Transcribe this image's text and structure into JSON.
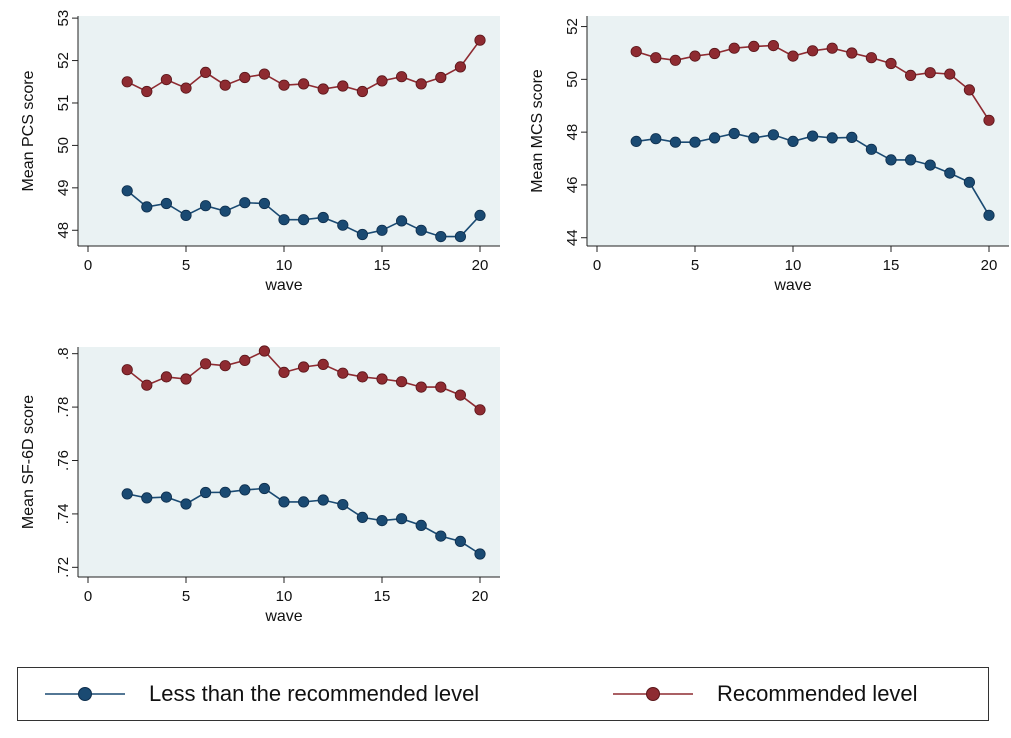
{
  "colors": {
    "less": "#1a4a72",
    "recommended": "#8e2b31",
    "panel_bg": "#eaf2f3",
    "axis": "#222222"
  },
  "legend": {
    "position": "bottom",
    "items": [
      {
        "label": "Less than the recommended level",
        "color": "#1a4a72"
      },
      {
        "label": "Recommended level",
        "color": "#8e2b31"
      }
    ]
  },
  "chart_data": [
    {
      "type": "line",
      "xlabel": "wave",
      "ylabel": "Mean PCS score",
      "xlim": [
        0,
        20
      ],
      "ylim": [
        47.7,
        53.05
      ],
      "xticks": [
        0,
        5,
        10,
        15,
        20
      ],
      "yticks": [
        48,
        49,
        50,
        51,
        52,
        53
      ],
      "ytick_labels": [
        "48",
        "49",
        "50",
        "51",
        "52",
        "53"
      ],
      "grid": false,
      "x": [
        2,
        3,
        4,
        5,
        6,
        7,
        8,
        9,
        10,
        11,
        12,
        13,
        14,
        15,
        16,
        17,
        18,
        19,
        20
      ],
      "series": [
        {
          "name": "Less than the recommended level",
          "values": [
            48.93,
            48.55,
            48.63,
            48.35,
            48.58,
            48.45,
            48.65,
            48.63,
            48.25,
            48.25,
            48.3,
            48.12,
            47.9,
            48.0,
            48.22,
            48.0,
            47.85,
            47.85,
            48.35
          ]
        },
        {
          "name": "Recommended level",
          "values": [
            51.5,
            51.27,
            51.55,
            51.35,
            51.72,
            51.42,
            51.6,
            51.68,
            51.42,
            51.45,
            51.33,
            51.4,
            51.27,
            51.52,
            51.62,
            51.45,
            51.6,
            51.85,
            52.48
          ]
        }
      ]
    },
    {
      "type": "line",
      "xlabel": "wave",
      "ylabel": "Mean MCS score",
      "xlim": [
        0,
        20
      ],
      "ylim": [
        43.8,
        52.4
      ],
      "xticks": [
        0,
        5,
        10,
        15,
        20
      ],
      "yticks": [
        44,
        46,
        48,
        50,
        52
      ],
      "ytick_labels": [
        "44",
        "46",
        "48",
        "50",
        "52"
      ],
      "grid": false,
      "x": [
        2,
        3,
        4,
        5,
        6,
        7,
        8,
        9,
        10,
        11,
        12,
        13,
        14,
        15,
        16,
        17,
        18,
        19,
        20
      ],
      "series": [
        {
          "name": "Less than the recommended level",
          "values": [
            47.65,
            47.75,
            47.62,
            47.62,
            47.78,
            47.95,
            47.78,
            47.9,
            47.65,
            47.85,
            47.78,
            47.8,
            47.35,
            46.95,
            46.95,
            46.75,
            46.45,
            46.1,
            44.85
          ]
        },
        {
          "name": "Recommended level",
          "values": [
            51.05,
            50.82,
            50.72,
            50.88,
            50.98,
            51.18,
            51.25,
            51.28,
            50.88,
            51.08,
            51.18,
            51.0,
            50.82,
            50.6,
            50.15,
            50.25,
            50.2,
            49.6,
            48.45
          ]
        }
      ]
    },
    {
      "type": "line",
      "xlabel": "wave",
      "ylabel": "Mean SF-6D score",
      "xlim": [
        0,
        20
      ],
      "ylim": [
        0.7175,
        0.8025
      ],
      "xticks": [
        0,
        5,
        10,
        15,
        20
      ],
      "yticks": [
        0.72,
        0.74,
        0.76,
        0.78,
        0.8
      ],
      "ytick_labels": [
        ".72",
        ".74",
        ".76",
        ".78",
        ".8"
      ],
      "grid": false,
      "x": [
        2,
        3,
        4,
        5,
        6,
        7,
        8,
        9,
        10,
        11,
        12,
        13,
        14,
        15,
        16,
        17,
        18,
        19,
        20
      ],
      "series": [
        {
          "name": "Less than the recommended level",
          "values": [
            0.7475,
            0.746,
            0.7463,
            0.7437,
            0.748,
            0.7481,
            0.749,
            0.7495,
            0.7445,
            0.7445,
            0.7452,
            0.7435,
            0.7387,
            0.7375,
            0.7382,
            0.7357,
            0.7317,
            0.7297,
            0.725
          ]
        },
        {
          "name": "Recommended level",
          "values": [
            0.794,
            0.7882,
            0.7913,
            0.7905,
            0.7962,
            0.7955,
            0.7975,
            0.801,
            0.793,
            0.795,
            0.796,
            0.7927,
            0.7913,
            0.7905,
            0.7895,
            0.7875,
            0.7875,
            0.7845,
            0.779
          ]
        }
      ]
    }
  ]
}
